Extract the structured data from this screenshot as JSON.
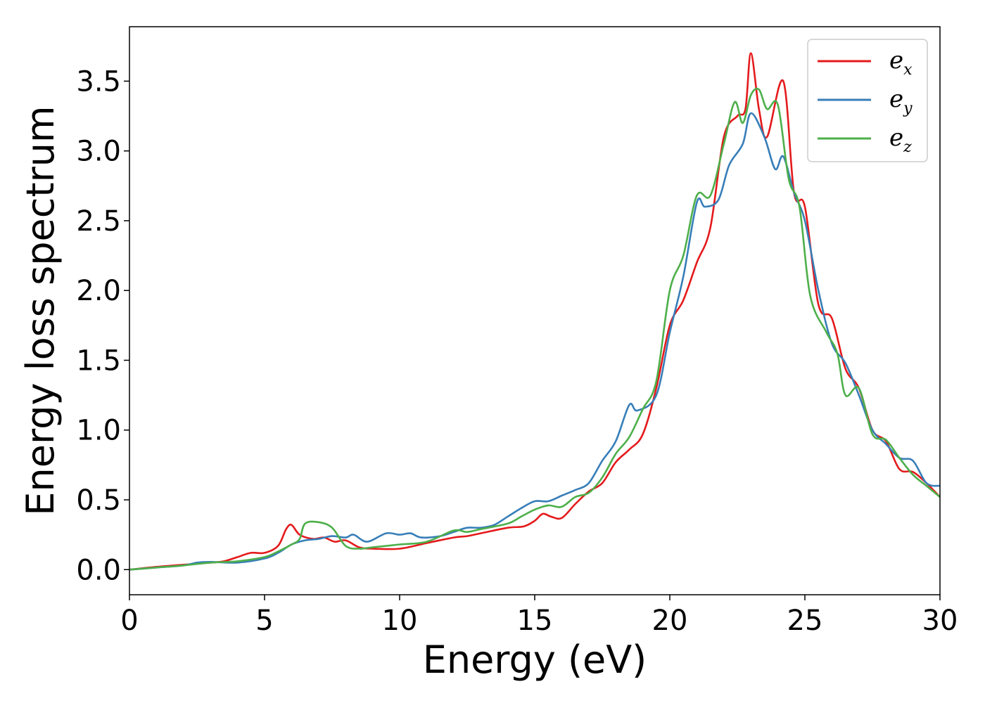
{
  "chart_data": {
    "type": "line",
    "xlabel": "Energy (eV)",
    "ylabel": "Energy loss spectrum",
    "xlim": [
      0,
      30
    ],
    "ylim": [
      -0.18,
      3.89
    ],
    "xticks": [
      0,
      5,
      10,
      15,
      20,
      25,
      30
    ],
    "xtick_labels": [
      "0",
      "5",
      "10",
      "15",
      "20",
      "25",
      "30"
    ],
    "yticks": [
      0.0,
      0.5,
      1.0,
      1.5,
      2.0,
      2.5,
      3.0,
      3.5
    ],
    "ytick_labels": [
      "0.0",
      "0.5",
      "1.0",
      "1.5",
      "2.0",
      "2.5",
      "3.0",
      "3.5"
    ],
    "grid": false,
    "legend_position": "top-right",
    "series": [
      {
        "name": "e",
        "subscript": "x",
        "color": "#e41a1c",
        "points": [
          [
            0,
            0.0
          ],
          [
            1,
            0.02
          ],
          [
            2,
            0.035
          ],
          [
            3,
            0.05
          ],
          [
            3.5,
            0.06
          ],
          [
            4,
            0.09
          ],
          [
            4.5,
            0.12
          ],
          [
            5,
            0.12
          ],
          [
            5.5,
            0.17
          ],
          [
            5.8,
            0.29
          ],
          [
            6.0,
            0.32
          ],
          [
            6.3,
            0.25
          ],
          [
            6.8,
            0.22
          ],
          [
            7.2,
            0.23
          ],
          [
            7.6,
            0.2
          ],
          [
            8.0,
            0.21
          ],
          [
            8.5,
            0.16
          ],
          [
            9,
            0.15
          ],
          [
            10,
            0.15
          ],
          [
            11,
            0.19
          ],
          [
            12,
            0.23
          ],
          [
            12.5,
            0.24
          ],
          [
            13,
            0.26
          ],
          [
            14,
            0.3
          ],
          [
            14.6,
            0.31
          ],
          [
            15,
            0.35
          ],
          [
            15.3,
            0.4
          ],
          [
            15.6,
            0.38
          ],
          [
            16,
            0.37
          ],
          [
            16.5,
            0.47
          ],
          [
            17,
            0.56
          ],
          [
            17.5,
            0.62
          ],
          [
            18,
            0.77
          ],
          [
            18.5,
            0.86
          ],
          [
            19.0,
            0.97
          ],
          [
            19.5,
            1.3
          ],
          [
            20.0,
            1.75
          ],
          [
            20.5,
            1.93
          ],
          [
            21.0,
            2.2
          ],
          [
            21.5,
            2.45
          ],
          [
            22.0,
            3.1
          ],
          [
            22.5,
            3.25
          ],
          [
            22.8,
            3.3
          ],
          [
            23.0,
            3.7
          ],
          [
            23.3,
            3.3
          ],
          [
            23.6,
            3.1
          ],
          [
            24.2,
            3.5
          ],
          [
            24.6,
            2.7
          ],
          [
            25.0,
            2.6
          ],
          [
            25.5,
            1.9
          ],
          [
            26.0,
            1.8
          ],
          [
            26.5,
            1.44
          ],
          [
            27.0,
            1.3
          ],
          [
            27.5,
            1.0
          ],
          [
            28.0,
            0.92
          ],
          [
            28.5,
            0.72
          ],
          [
            29.0,
            0.7
          ],
          [
            29.5,
            0.62
          ],
          [
            30.0,
            0.52
          ]
        ]
      },
      {
        "name": "e",
        "subscript": "y",
        "color": "#377eb8",
        "points": [
          [
            0,
            0.0
          ],
          [
            1,
            0.015
          ],
          [
            2,
            0.03
          ],
          [
            2.5,
            0.05
          ],
          [
            3,
            0.055
          ],
          [
            4,
            0.05
          ],
          [
            5,
            0.08
          ],
          [
            5.5,
            0.12
          ],
          [
            6,
            0.18
          ],
          [
            6.5,
            0.21
          ],
          [
            7,
            0.22
          ],
          [
            7.5,
            0.24
          ],
          [
            8.0,
            0.23
          ],
          [
            8.3,
            0.25
          ],
          [
            8.8,
            0.2
          ],
          [
            9.5,
            0.26
          ],
          [
            10.0,
            0.25
          ],
          [
            10.4,
            0.26
          ],
          [
            10.8,
            0.23
          ],
          [
            11.5,
            0.24
          ],
          [
            12,
            0.27
          ],
          [
            12.5,
            0.3
          ],
          [
            13,
            0.3
          ],
          [
            13.5,
            0.32
          ],
          [
            14,
            0.38
          ],
          [
            14.5,
            0.44
          ],
          [
            15,
            0.49
          ],
          [
            15.5,
            0.49
          ],
          [
            16,
            0.53
          ],
          [
            16.5,
            0.57
          ],
          [
            17,
            0.62
          ],
          [
            17.5,
            0.78
          ],
          [
            18,
            0.92
          ],
          [
            18.5,
            1.18
          ],
          [
            18.8,
            1.14
          ],
          [
            19.5,
            1.25
          ],
          [
            20.0,
            1.7
          ],
          [
            20.5,
            2.1
          ],
          [
            21.0,
            2.63
          ],
          [
            21.3,
            2.6
          ],
          [
            21.8,
            2.65
          ],
          [
            22.2,
            2.9
          ],
          [
            22.7,
            3.05
          ],
          [
            23.0,
            3.27
          ],
          [
            23.5,
            3.1
          ],
          [
            23.9,
            2.87
          ],
          [
            24.2,
            2.96
          ],
          [
            24.6,
            2.7
          ],
          [
            25.0,
            2.5
          ],
          [
            25.5,
            2.0
          ],
          [
            26.0,
            1.62
          ],
          [
            26.5,
            1.48
          ],
          [
            27.0,
            1.25
          ],
          [
            27.5,
            1.0
          ],
          [
            28.0,
            0.9
          ],
          [
            28.5,
            0.8
          ],
          [
            29.0,
            0.78
          ],
          [
            29.5,
            0.62
          ],
          [
            30.0,
            0.6
          ]
        ]
      },
      {
        "name": "e",
        "subscript": "z",
        "color": "#4daf4a",
        "points": [
          [
            0,
            0.0
          ],
          [
            1,
            0.015
          ],
          [
            2,
            0.03
          ],
          [
            3,
            0.05
          ],
          [
            4,
            0.06
          ],
          [
            5,
            0.09
          ],
          [
            5.5,
            0.13
          ],
          [
            6,
            0.18
          ],
          [
            6.3,
            0.22
          ],
          [
            6.5,
            0.33
          ],
          [
            7.0,
            0.34
          ],
          [
            7.5,
            0.3
          ],
          [
            8.0,
            0.17
          ],
          [
            8.5,
            0.15
          ],
          [
            9,
            0.16
          ],
          [
            10,
            0.18
          ],
          [
            11,
            0.2
          ],
          [
            12,
            0.28
          ],
          [
            12.5,
            0.27
          ],
          [
            13,
            0.29
          ],
          [
            14,
            0.33
          ],
          [
            14.5,
            0.38
          ],
          [
            15,
            0.43
          ],
          [
            15.5,
            0.46
          ],
          [
            16,
            0.45
          ],
          [
            16.5,
            0.52
          ],
          [
            17,
            0.55
          ],
          [
            17.5,
            0.66
          ],
          [
            18,
            0.83
          ],
          [
            18.5,
            0.95
          ],
          [
            19.0,
            1.15
          ],
          [
            19.5,
            1.35
          ],
          [
            20.0,
            2.0
          ],
          [
            20.5,
            2.25
          ],
          [
            21.0,
            2.68
          ],
          [
            21.5,
            2.68
          ],
          [
            22.0,
            3.05
          ],
          [
            22.4,
            3.35
          ],
          [
            22.7,
            3.2
          ],
          [
            23.0,
            3.4
          ],
          [
            23.3,
            3.44
          ],
          [
            23.6,
            3.3
          ],
          [
            24.0,
            3.33
          ],
          [
            24.4,
            2.8
          ],
          [
            24.8,
            2.6
          ],
          [
            25.2,
            1.96
          ],
          [
            25.8,
            1.7
          ],
          [
            26.2,
            1.55
          ],
          [
            26.5,
            1.25
          ],
          [
            27.0,
            1.3
          ],
          [
            27.5,
            0.97
          ],
          [
            28.0,
            0.93
          ],
          [
            28.5,
            0.8
          ],
          [
            29.0,
            0.68
          ],
          [
            29.5,
            0.6
          ],
          [
            30.0,
            0.52
          ]
        ]
      }
    ]
  }
}
